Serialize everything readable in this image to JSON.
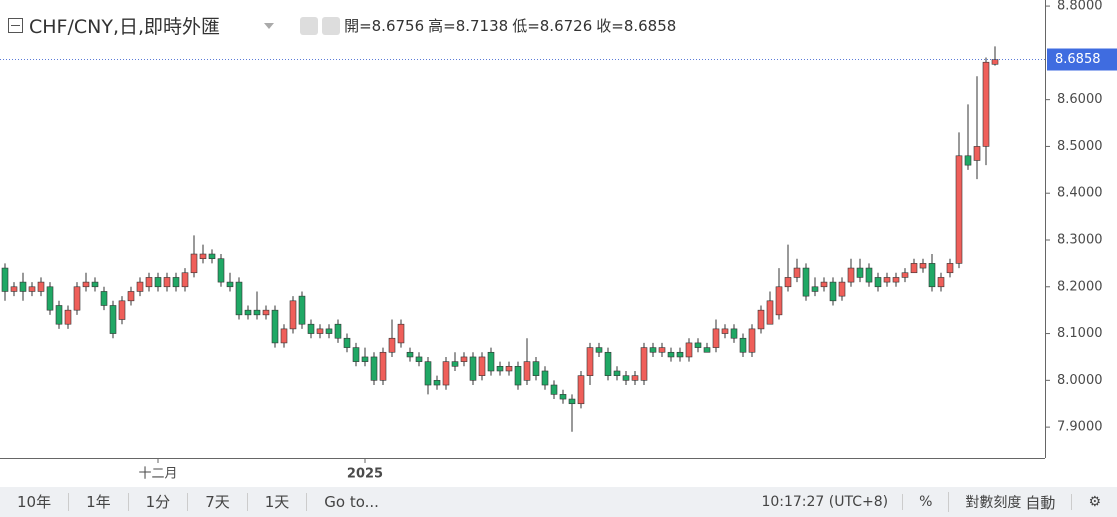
{
  "header": {
    "symbol": "CHF/CNY,日,即時外匯",
    "ohlc_labels": [
      "開=8.6756",
      "高=8.7138",
      "低=8.6726",
      "收=8.6858"
    ]
  },
  "toolbar": {
    "ranges": [
      "10年",
      "1年",
      "1分",
      "7天",
      "1天"
    ],
    "goto": "Go to...",
    "time": "10:17:27 (UTC+8)",
    "percent": "%",
    "log": "對數刻度",
    "auto": "自動"
  },
  "chart_data": {
    "type": "candlestick",
    "up_color": "#ef5f5a",
    "down_color": "#20a865",
    "ylim": [
      7.834,
      8.813
    ],
    "yticks": [
      {
        "value": 7.9,
        "label": "7.9000"
      },
      {
        "value": 8.0,
        "label": "8.0000"
      },
      {
        "value": 8.1,
        "label": "8.1000"
      },
      {
        "value": 8.2,
        "label": "8.2000"
      },
      {
        "value": 8.3,
        "label": "8.3000"
      },
      {
        "value": 8.4,
        "label": "8.4000"
      },
      {
        "value": 8.5,
        "label": "8.5000"
      },
      {
        "value": 8.6,
        "label": "8.6000"
      },
      {
        "value": 8.8,
        "label": "8.8000"
      }
    ],
    "categories": [
      null,
      null,
      null,
      null,
      null,
      null,
      null,
      null,
      null,
      null,
      null,
      null,
      null,
      null,
      null,
      null,
      null,
      "十二月",
      null,
      null,
      null,
      null,
      null,
      null,
      null,
      null,
      null,
      null,
      null,
      null,
      null,
      null,
      null,
      null,
      null,
      null,
      null,
      null,
      null,
      null,
      "2025",
      null,
      null,
      null,
      null,
      null,
      null,
      null,
      null,
      null,
      null,
      null,
      null,
      null,
      null,
      null,
      null,
      null,
      null,
      null,
      null,
      null,
      null,
      null,
      null,
      null,
      null,
      null,
      null,
      null,
      null,
      null,
      null,
      null,
      null,
      null,
      null,
      null,
      null,
      null,
      null,
      null,
      null,
      null,
      null,
      null,
      null,
      null,
      null,
      null,
      null,
      null,
      null,
      null,
      null,
      null,
      null,
      null,
      null,
      null,
      null,
      null,
      null,
      null,
      null,
      null,
      null,
      null,
      null,
      null,
      null
    ],
    "open": [
      8.24,
      8.19,
      8.21,
      8.19,
      8.19,
      8.2,
      8.16,
      8.12,
      8.15,
      8.2,
      8.21,
      8.19,
      8.16,
      8.13,
      8.17,
      8.19,
      8.2,
      8.22,
      8.2,
      8.22,
      8.2,
      8.23,
      8.26,
      8.27,
      8.26,
      8.21,
      8.21,
      8.15,
      8.15,
      8.14,
      8.15,
      8.08,
      8.11,
      8.18,
      8.12,
      8.1,
      8.11,
      8.12,
      8.09,
      8.07,
      8.05,
      8.05,
      8.0,
      8.06,
      8.08,
      8.06,
      8.05,
      8.04,
      8.0,
      7.99,
      8.04,
      8.04,
      8.05,
      8.01,
      8.06,
      8.03,
      8.02,
      8.03,
      8.0,
      8.04,
      8.02,
      7.99,
      7.97,
      7.96,
      7.95,
      8.01,
      8.07,
      8.06,
      8.02,
      8.01,
      8.0,
      8.0,
      8.07,
      8.06,
      8.06,
      8.06,
      8.05,
      8.08,
      8.07,
      8.07,
      8.1,
      8.11,
      8.09,
      8.06,
      8.11,
      8.12,
      8.14,
      8.2,
      8.22,
      8.24,
      8.2,
      8.2,
      8.21,
      8.18,
      8.21,
      8.24,
      8.24,
      8.22,
      8.21,
      8.21,
      8.22,
      8.23,
      8.24,
      8.25,
      8.2,
      8.23,
      8.25,
      8.48,
      8.47,
      8.5,
      8.6756
    ],
    "high": [
      8.25,
      8.21,
      8.23,
      8.21,
      8.22,
      8.21,
      8.17,
      8.16,
      8.21,
      8.23,
      8.22,
      8.2,
      8.17,
      8.18,
      8.2,
      8.22,
      8.23,
      8.23,
      8.23,
      8.23,
      8.24,
      8.31,
      8.29,
      8.28,
      8.27,
      8.23,
      8.22,
      8.16,
      8.19,
      8.16,
      8.16,
      8.12,
      8.18,
      8.19,
      8.13,
      8.12,
      8.12,
      8.13,
      8.1,
      8.08,
      8.07,
      8.06,
      8.07,
      8.13,
      8.13,
      8.07,
      8.06,
      8.05,
      8.01,
      8.05,
      8.06,
      8.06,
      8.06,
      8.06,
      8.07,
      8.04,
      8.04,
      8.04,
      8.09,
      8.05,
      8.03,
      8.0,
      7.98,
      7.97,
      8.02,
      8.08,
      8.08,
      8.07,
      8.03,
      8.02,
      8.02,
      8.08,
      8.08,
      8.08,
      8.07,
      8.07,
      8.09,
      8.09,
      8.08,
      8.13,
      8.12,
      8.12,
      8.1,
      8.12,
      8.16,
      8.19,
      8.24,
      8.29,
      8.26,
      8.25,
      8.22,
      8.22,
      8.22,
      8.22,
      8.26,
      8.26,
      8.25,
      8.23,
      8.23,
      8.23,
      8.24,
      8.26,
      8.26,
      8.27,
      8.23,
      8.26,
      8.53,
      8.59,
      8.65,
      8.69,
      8.7138
    ],
    "low": [
      8.17,
      8.18,
      8.17,
      8.18,
      8.18,
      8.14,
      8.11,
      8.11,
      8.14,
      8.19,
      8.19,
      8.15,
      8.09,
      8.12,
      8.16,
      8.18,
      8.19,
      8.19,
      8.19,
      8.19,
      8.19,
      8.22,
      8.25,
      8.25,
      8.2,
      8.19,
      8.13,
      8.13,
      8.13,
      8.13,
      8.07,
      8.07,
      8.1,
      8.11,
      8.09,
      8.09,
      8.09,
      8.08,
      8.06,
      8.03,
      8.03,
      7.99,
      7.99,
      8.05,
      8.07,
      8.04,
      8.03,
      7.97,
      7.98,
      7.98,
      8.02,
      8.03,
      7.99,
      8.0,
      8.01,
      8.01,
      8.01,
      7.98,
      7.99,
      8.0,
      7.98,
      7.96,
      7.95,
      7.89,
      7.94,
      7.99,
      8.05,
      8.0,
      8.0,
      7.99,
      7.99,
      7.99,
      8.05,
      8.05,
      8.04,
      8.04,
      8.04,
      8.06,
      8.06,
      8.06,
      8.09,
      8.08,
      8.05,
      8.05,
      8.1,
      8.12,
      8.13,
      8.19,
      8.21,
      8.17,
      8.18,
      8.19,
      8.16,
      8.17,
      8.2,
      8.21,
      8.2,
      8.19,
      8.2,
      8.2,
      8.21,
      8.23,
      8.23,
      8.19,
      8.19,
      8.22,
      8.24,
      8.45,
      8.43,
      8.46,
      8.6726
    ],
    "close": [
      8.19,
      8.2,
      8.19,
      8.2,
      8.21,
      8.15,
      8.12,
      8.15,
      8.2,
      8.21,
      8.2,
      8.16,
      8.1,
      8.17,
      8.19,
      8.21,
      8.22,
      8.2,
      8.22,
      8.2,
      8.23,
      8.27,
      8.27,
      8.26,
      8.21,
      8.2,
      8.14,
      8.14,
      8.14,
      8.15,
      8.08,
      8.11,
      8.17,
      8.12,
      8.1,
      8.11,
      8.1,
      8.09,
      8.07,
      8.04,
      8.04,
      8.0,
      8.06,
      8.09,
      8.12,
      8.05,
      8.04,
      7.99,
      7.99,
      8.04,
      8.03,
      8.05,
      8.0,
      8.05,
      8.02,
      8.02,
      8.03,
      7.99,
      8.04,
      8.01,
      7.99,
      7.97,
      7.96,
      7.95,
      8.01,
      8.07,
      8.06,
      8.01,
      8.01,
      8.0,
      8.01,
      8.07,
      8.06,
      8.07,
      8.05,
      8.05,
      8.08,
      8.07,
      8.06,
      8.11,
      8.11,
      8.09,
      8.06,
      8.11,
      8.15,
      8.17,
      8.2,
      8.22,
      8.24,
      8.18,
      8.19,
      8.21,
      8.17,
      8.21,
      8.24,
      8.22,
      8.21,
      8.2,
      8.22,
      8.22,
      8.23,
      8.25,
      8.25,
      8.2,
      8.22,
      8.25,
      8.48,
      8.46,
      8.5,
      8.68,
      8.6858
    ]
  }
}
